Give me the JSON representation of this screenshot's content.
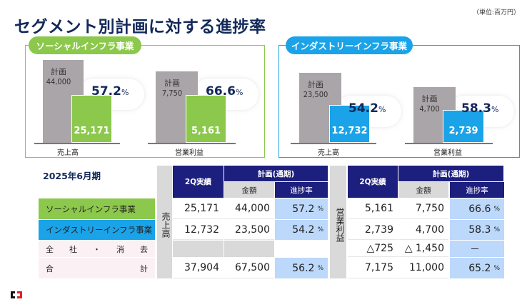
{
  "title": "セグメント別計画に対する進捗率",
  "unit": "（単位:百万円）",
  "panels": [
    {
      "name": "ソーシャルインフラ事業",
      "color": "#8cc84b",
      "bars": [
        {
          "axis": "売上高",
          "plan_label": "計画",
          "plan": "44,000",
          "actual": "25,171",
          "pct": "57.2",
          "pct_unit": "%"
        },
        {
          "axis": "営業利益",
          "plan_label": "計画",
          "plan": "7,750",
          "actual": "5,161",
          "pct": "66.6",
          "pct_unit": "%"
        }
      ]
    },
    {
      "name": "インダストリーインフラ事業",
      "color": "#1aa3e8",
      "bars": [
        {
          "axis": "売上高",
          "plan_label": "計画",
          "plan": "23,500",
          "actual": "12,732",
          "pct": "54.2",
          "pct_unit": "%"
        },
        {
          "axis": "営業利益",
          "plan_label": "計画",
          "plan": "4,700",
          "actual": "2,739",
          "pct": "58.3",
          "pct_unit": "%"
        }
      ]
    }
  ],
  "table": {
    "period": "2025年6月期",
    "sales_label": "売上高",
    "op_label": "営業利益",
    "h_actual": "2Q実績",
    "h_plan": "計画(通期)",
    "h_amount": "金額",
    "h_progress": "進捗率",
    "pct_unit": "%",
    "rows": [
      {
        "label": "ソーシャルインフラ事業",
        "s_act": "25,171",
        "s_plan": "44,000",
        "s_pct": "57.2",
        "o_act": "5,161",
        "o_plan": "7,750",
        "o_pct": "66.6"
      },
      {
        "label": "インダストリーインフラ事業",
        "s_act": "12,732",
        "s_plan": "23,500",
        "s_pct": "54.2",
        "o_act": "2,739",
        "o_plan": "4,700",
        "o_pct": "58.3"
      },
      {
        "label_chars": [
          "全",
          "社",
          "・",
          "消",
          "去"
        ],
        "o_act": "△725",
        "o_plan": "△ 1,450",
        "o_pct": "－"
      },
      {
        "label_chars": [
          "合",
          "計"
        ],
        "s_act": "37,904",
        "s_plan": "67,500",
        "s_pct": "56.2",
        "o_act": "7,175",
        "o_plan": "11,000",
        "o_pct": "65.2"
      }
    ]
  }
}
